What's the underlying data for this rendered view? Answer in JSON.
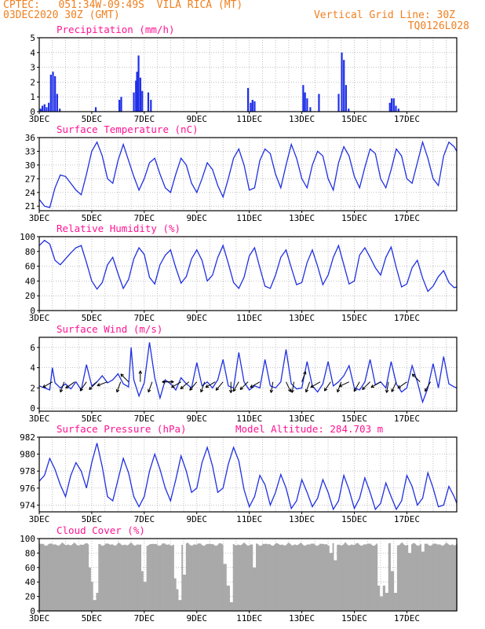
{
  "header": {
    "line1": "CPTEC:   051:34W-09:49S  VILA RICA (MT)",
    "line2": "03DEC2020 30Z (GMT)",
    "grid_note": "Vertical Grid Line: 30Z",
    "code": "TQ0126L028"
  },
  "colors": {
    "header": "#f08020",
    "title": "#ff1493",
    "line": "#2030e0",
    "bar": "#1f2fe8",
    "cloud": "#a9a9a9"
  },
  "chart_data": [
    {
      "type": "bar",
      "title": "Precipitation (mm/h)",
      "ylim": [
        0,
        5
      ],
      "yticks": [
        0,
        1,
        2,
        3,
        4,
        5
      ],
      "x_labels": [
        "3DEC",
        "5DEC",
        "7DEC",
        "9DEC",
        "11DEC",
        "13DEC",
        "15DEC",
        "17DEC"
      ],
      "x_start_day": 3.0,
      "x_end_day": 18.9,
      "x": [
        3.05,
        3.12,
        3.2,
        3.28,
        3.36,
        3.44,
        3.52,
        3.6,
        3.68,
        3.78,
        5.15,
        6.05,
        6.12,
        6.6,
        6.68,
        6.72,
        6.78,
        6.85,
        6.92,
        7.15,
        7.25,
        10.95,
        11.05,
        11.12,
        11.2,
        13.05,
        13.12,
        13.2,
        13.32,
        13.65,
        14.4,
        14.52,
        14.6,
        14.68,
        14.78,
        16.35,
        16.42,
        16.5,
        16.58,
        16.68
      ],
      "values": [
        0.2,
        0.4,
        0.5,
        0.3,
        0.6,
        2.5,
        2.7,
        2.4,
        1.2,
        0.2,
        0.3,
        0.8,
        1.0,
        1.3,
        2.1,
        2.7,
        3.8,
        2.3,
        1.4,
        1.3,
        0.8,
        1.6,
        0.6,
        0.8,
        0.7,
        1.8,
        1.3,
        0.9,
        0.3,
        1.2,
        1.2,
        4.0,
        3.5,
        1.8,
        0.2,
        0.6,
        0.9,
        0.9,
        0.4,
        0.2
      ]
    },
    {
      "type": "line",
      "title": "Surface Temperature (nC)",
      "ylim": [
        20,
        36
      ],
      "yticks": [
        21,
        24,
        27,
        30,
        33,
        36
      ],
      "x_labels": [
        "3DEC",
        "5DEC",
        "7DEC",
        "9DEC",
        "11DEC",
        "13DEC",
        "15DEC",
        "17DEC"
      ],
      "x_start_day": 3.0,
      "x_end_day": 18.9,
      "x": [
        3.0,
        3.2,
        3.4,
        3.6,
        3.8,
        4.0,
        4.2,
        4.4,
        4.6,
        4.8,
        5.0,
        5.2,
        5.4,
        5.6,
        5.8,
        6.0,
        6.2,
        6.4,
        6.6,
        6.8,
        7.0,
        7.2,
        7.4,
        7.6,
        7.8,
        8.0,
        8.2,
        8.4,
        8.6,
        8.8,
        9.0,
        9.2,
        9.4,
        9.6,
        9.8,
        10.0,
        10.2,
        10.4,
        10.6,
        10.8,
        11.0,
        11.2,
        11.4,
        11.6,
        11.8,
        12.0,
        12.2,
        12.4,
        12.6,
        12.8,
        13.0,
        13.2,
        13.4,
        13.6,
        13.8,
        14.0,
        14.2,
        14.4,
        14.6,
        14.8,
        15.0,
        15.2,
        15.4,
        15.6,
        15.8,
        16.0,
        16.2,
        16.4,
        16.6,
        16.8,
        17.0,
        17.2,
        17.4,
        17.6,
        17.8,
        18.0,
        18.2,
        18.4,
        18.6,
        18.8,
        18.9
      ],
      "values": [
        22.5,
        21.0,
        20.7,
        25.0,
        27.8,
        27.5,
        26.0,
        24.5,
        23.5,
        28.0,
        33.0,
        35.0,
        32.0,
        27.0,
        26.0,
        31.0,
        34.5,
        31.0,
        27.5,
        24.5,
        27.0,
        30.5,
        31.5,
        28.0,
        25.0,
        24.0,
        28.0,
        31.5,
        30.0,
        26.0,
        24.0,
        27.0,
        30.5,
        29.0,
        25.5,
        23.0,
        27.0,
        31.5,
        33.5,
        30.0,
        24.5,
        25.0,
        31.0,
        33.5,
        32.5,
        28.0,
        25.0,
        30.0,
        34.5,
        31.5,
        27.0,
        25.0,
        30.0,
        33.0,
        32.0,
        27.0,
        24.5,
        30.5,
        34.0,
        32.0,
        27.5,
        25.0,
        29.5,
        33.5,
        32.5,
        27.0,
        25.0,
        29.0,
        33.5,
        32.0,
        27.0,
        26.0,
        30.5,
        35.0,
        31.5,
        27.0,
        25.5,
        32.0,
        35.0,
        34.0,
        33.0
      ]
    },
    {
      "type": "line",
      "title": "Relative Humidity (%)",
      "ylim": [
        0,
        100
      ],
      "yticks": [
        0,
        20,
        40,
        60,
        80,
        100
      ],
      "x_labels": [
        "3DEC",
        "5DEC",
        "7DEC",
        "9DEC",
        "11DEC",
        "13DEC",
        "15DEC",
        "17DEC"
      ],
      "x_start_day": 3.0,
      "x_end_day": 18.9,
      "x": [
        3.0,
        3.2,
        3.4,
        3.6,
        3.8,
        4.0,
        4.2,
        4.4,
        4.6,
        4.8,
        5.0,
        5.2,
        5.4,
        5.6,
        5.8,
        6.0,
        6.2,
        6.4,
        6.6,
        6.8,
        7.0,
        7.2,
        7.4,
        7.6,
        7.8,
        8.0,
        8.2,
        8.4,
        8.6,
        8.8,
        9.0,
        9.2,
        9.4,
        9.6,
        9.8,
        10.0,
        10.2,
        10.4,
        10.6,
        10.8,
        11.0,
        11.2,
        11.4,
        11.6,
        11.8,
        12.0,
        12.2,
        12.4,
        12.6,
        12.8,
        13.0,
        13.2,
        13.4,
        13.6,
        13.8,
        14.0,
        14.2,
        14.4,
        14.6,
        14.8,
        15.0,
        15.2,
        15.4,
        15.6,
        15.8,
        16.0,
        16.2,
        16.4,
        16.6,
        16.8,
        17.0,
        17.2,
        17.4,
        17.6,
        17.8,
        18.0,
        18.2,
        18.4,
        18.6,
        18.8,
        18.9
      ],
      "values": [
        88,
        95,
        90,
        68,
        62,
        70,
        78,
        85,
        88,
        65,
        40,
        29,
        38,
        62,
        72,
        50,
        30,
        42,
        70,
        85,
        76,
        45,
        36,
        62,
        75,
        82,
        58,
        37,
        46,
        70,
        82,
        68,
        40,
        48,
        72,
        88,
        64,
        38,
        30,
        45,
        74,
        85,
        58,
        33,
        30,
        48,
        72,
        82,
        58,
        35,
        38,
        65,
        82,
        60,
        35,
        48,
        72,
        88,
        62,
        36,
        40,
        75,
        85,
        72,
        58,
        48,
        72,
        86,
        58,
        32,
        36,
        58,
        68,
        44,
        26,
        33,
        46,
        54,
        38,
        31,
        32
      ]
    },
    {
      "type": "line",
      "title": "Surface Wind (m/s)",
      "ylim": [
        -0.3,
        7.0
      ],
      "yticks": [
        0,
        2,
        4,
        6
      ],
      "x_labels": [
        "3DEC",
        "5DEC",
        "7DEC",
        "9DEC",
        "11DEC",
        "13DEC",
        "15DEC",
        "17DEC"
      ],
      "x_start_day": 3.0,
      "x_end_day": 18.9,
      "x": [
        3.0,
        3.2,
        3.4,
        3.5,
        3.6,
        3.8,
        4.0,
        4.2,
        4.4,
        4.6,
        4.8,
        5.0,
        5.2,
        5.4,
        5.6,
        5.8,
        6.0,
        6.2,
        6.4,
        6.5,
        6.6,
        6.8,
        7.0,
        7.2,
        7.4,
        7.6,
        7.8,
        8.0,
        8.2,
        8.4,
        8.6,
        8.8,
        9.0,
        9.2,
        9.4,
        9.6,
        9.8,
        10.0,
        10.2,
        10.4,
        10.6,
        10.8,
        11.0,
        11.2,
        11.4,
        11.6,
        11.8,
        12.0,
        12.2,
        12.4,
        12.6,
        12.8,
        13.0,
        13.2,
        13.4,
        13.6,
        13.8,
        14.0,
        14.2,
        14.4,
        14.6,
        14.8,
        15.0,
        15.2,
        15.4,
        15.6,
        15.8,
        16.0,
        16.2,
        16.4,
        16.6,
        16.8,
        17.0,
        17.2,
        17.4,
        17.6,
        17.8,
        18.0,
        18.2,
        18.4,
        18.6,
        18.8,
        18.9
      ],
      "values": [
        2.2,
        2.0,
        1.8,
        4.0,
        2.5,
        2.0,
        2.4,
        1.9,
        2.6,
        1.8,
        4.3,
        2.2,
        2.6,
        3.2,
        2.5,
        2.8,
        3.4,
        2.4,
        2.1,
        6.0,
        2.8,
        1.2,
        2.5,
        6.5,
        3.0,
        1.0,
        2.8,
        2.4,
        1.8,
        3.0,
        2.4,
        2.0,
        4.5,
        2.2,
        2.6,
        2.0,
        2.8,
        4.8,
        2.2,
        2.0,
        5.5,
        2.6,
        1.8,
        2.2,
        2.0,
        4.8,
        2.2,
        2.0,
        2.6,
        5.8,
        2.4,
        1.9,
        2.0,
        4.6,
        2.2,
        1.6,
        2.4,
        4.6,
        2.2,
        2.6,
        3.2,
        4.2,
        2.0,
        1.8,
        2.6,
        4.8,
        2.3,
        2.6,
        2.0,
        4.6,
        2.4,
        1.6,
        2.0,
        4.2,
        2.6,
        0.6,
        2.0,
        4.4,
        2.0,
        5.1,
        2.4,
        2.1,
        2.0
      ],
      "arrows_x": [
        3.5,
        3.95,
        4.35,
        4.8,
        5.2,
        5.6,
        6.1,
        6.4,
        6.85,
        7.3,
        7.7,
        8.1,
        8.4,
        8.7,
        9.0,
        9.3,
        9.7,
        10.0,
        10.3,
        10.6,
        10.95,
        11.4,
        11.9,
        12.4,
        12.7,
        13.0,
        13.3,
        13.7,
        14.1,
        14.5,
        14.8,
        15.2,
        15.6,
        16.0,
        16.3,
        16.6,
        17.0,
        17.5,
        17.9
      ],
      "arrows_dir": [
        240,
        200,
        235,
        215,
        225,
        250,
        200,
        315,
        0,
        200,
        90,
        270,
        240,
        230,
        220,
        200,
        240,
        220,
        180,
        210,
        225,
        240,
        190,
        155,
        190,
        20,
        200,
        240,
        215,
        200,
        245,
        210,
        225,
        240,
        190,
        205,
        235,
        315,
        210
      ]
    },
    {
      "type": "line",
      "title": "Surface Pressure (hPa)",
      "subtitle": "Model Altitude: 284.703 m",
      "ylim": [
        973.2,
        982.0
      ],
      "yticks": [
        974,
        976,
        978,
        980,
        982
      ],
      "x_labels": [
        "3DEC",
        "5DEC",
        "7DEC",
        "9DEC",
        "11DEC",
        "13DEC",
        "15DEC",
        "17DEC"
      ],
      "x_start_day": 3.0,
      "x_end_day": 18.9,
      "x": [
        3.0,
        3.2,
        3.4,
        3.6,
        3.8,
        4.0,
        4.2,
        4.4,
        4.6,
        4.8,
        5.0,
        5.2,
        5.4,
        5.6,
        5.8,
        6.0,
        6.2,
        6.4,
        6.6,
        6.8,
        7.0,
        7.2,
        7.4,
        7.6,
        7.8,
        8.0,
        8.2,
        8.4,
        8.6,
        8.8,
        9.0,
        9.2,
        9.4,
        9.6,
        9.8,
        10.0,
        10.2,
        10.4,
        10.6,
        10.8,
        11.0,
        11.2,
        11.4,
        11.6,
        11.8,
        12.0,
        12.2,
        12.4,
        12.6,
        12.8,
        13.0,
        13.2,
        13.4,
        13.6,
        13.8,
        14.0,
        14.2,
        14.4,
        14.6,
        14.8,
        15.0,
        15.2,
        15.4,
        15.6,
        15.8,
        16.0,
        16.2,
        16.4,
        16.6,
        16.8,
        17.0,
        17.2,
        17.4,
        17.6,
        17.8,
        18.0,
        18.2,
        18.4,
        18.6,
        18.8,
        18.9
      ],
      "values": [
        976.8,
        977.5,
        979.5,
        978.2,
        976.4,
        975.0,
        977.5,
        979.0,
        978.0,
        976.0,
        979.0,
        981.3,
        978.5,
        975.0,
        974.5,
        977.0,
        979.5,
        977.8,
        975.0,
        973.8,
        975.0,
        978.0,
        980.0,
        978.2,
        976.0,
        974.5,
        977.0,
        979.8,
        978.0,
        975.5,
        976.0,
        979.0,
        980.8,
        978.6,
        975.5,
        976.0,
        978.8,
        980.8,
        979.2,
        975.8,
        973.8,
        975.0,
        977.5,
        976.4,
        974.0,
        975.5,
        977.6,
        976.0,
        973.6,
        974.5,
        977.0,
        975.5,
        973.8,
        974.8,
        977.0,
        975.5,
        973.5,
        974.5,
        977.5,
        975.8,
        973.6,
        974.8,
        977.2,
        975.5,
        973.5,
        974.2,
        976.6,
        975.0,
        973.5,
        974.5,
        977.5,
        976.2,
        974.0,
        974.8,
        977.8,
        976.0,
        973.8,
        974.0,
        976.2,
        975.0,
        974.2
      ]
    },
    {
      "type": "bar",
      "title": "Cloud Cover (%)",
      "ylim": [
        0,
        100
      ],
      "yticks": [
        0,
        20,
        40,
        60,
        80,
        100
      ],
      "x_labels": [
        "3DEC",
        "5DEC",
        "7DEC",
        "9DEC",
        "11DEC",
        "13DEC",
        "15DEC",
        "17DEC"
      ],
      "x_start_day": 3.0,
      "x_end_day": 18.9,
      "base": 95,
      "dips_x": [
        4.9,
        5.0,
        5.1,
        5.15,
        6.9,
        7.0,
        8.15,
        8.25,
        8.35,
        8.5,
        10.05,
        10.15,
        10.3,
        11.15,
        14.1,
        14.25,
        15.9,
        16.0,
        16.1,
        16.2,
        16.4,
        16.55,
        17.1,
        17.6
      ],
      "dips_values": [
        60,
        40,
        15,
        25,
        55,
        40,
        45,
        30,
        15,
        50,
        65,
        35,
        12,
        60,
        80,
        70,
        35,
        20,
        35,
        25,
        55,
        25,
        80,
        82
      ]
    }
  ]
}
